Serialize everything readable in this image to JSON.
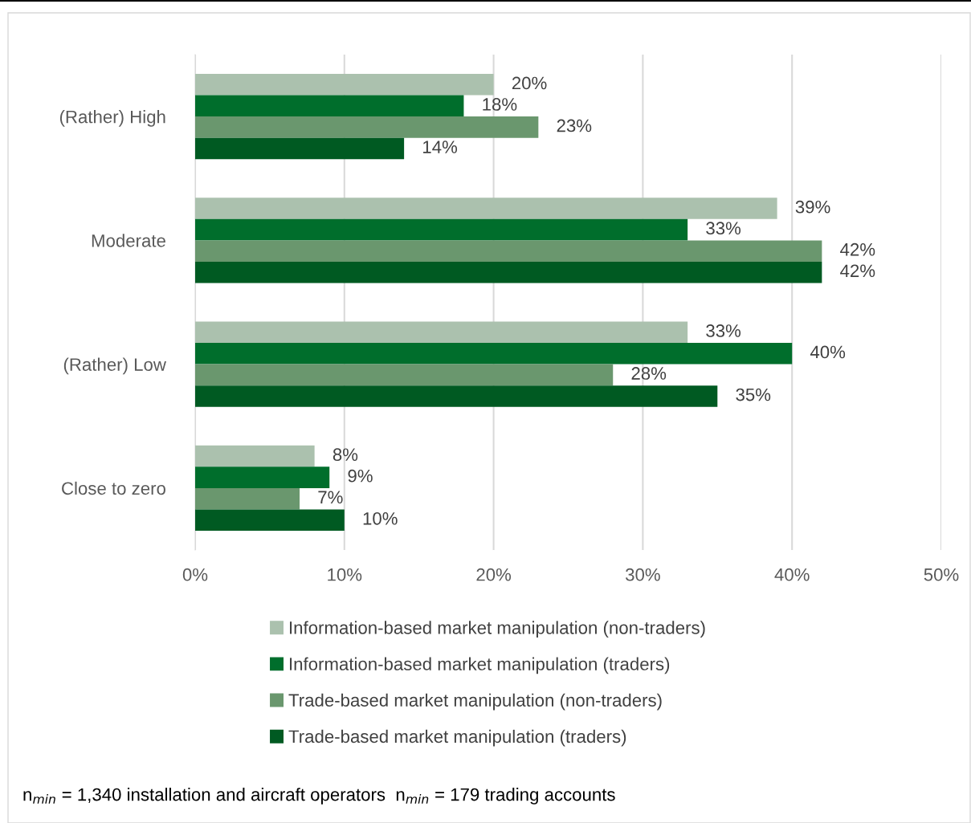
{
  "chart_data": {
    "type": "bar",
    "orientation": "horizontal",
    "categories": [
      "(Rather) High",
      "Moderate",
      "(Rather) Low",
      "Close to zero"
    ],
    "series": [
      {
        "name": "Information-based market manipulation (non-traders)",
        "color": "#abc1ae",
        "values": [
          20,
          39,
          33,
          8
        ],
        "value_labels": [
          "20%",
          "39%",
          "33%",
          "8%"
        ]
      },
      {
        "name": "Information-based market manipulation (traders)",
        "color": "#006e2c",
        "values": [
          18,
          33,
          40,
          9
        ],
        "value_labels": [
          "18%",
          "33%",
          "40%",
          "9%"
        ]
      },
      {
        "name": "Trade-based market manipulation (non-traders)",
        "color": "#6a976e",
        "values": [
          23,
          42,
          28,
          7
        ],
        "value_labels": [
          "23%",
          "42%",
          "28%",
          "7%"
        ]
      },
      {
        "name": "Trade-based market manipulation (traders)",
        "color": "#005a22",
        "values": [
          14,
          42,
          35,
          10
        ],
        "value_labels": [
          "14%",
          "42%",
          "35%",
          "10%"
        ]
      }
    ],
    "xlim": [
      0,
      50
    ],
    "xticks": [
      {
        "value": 0,
        "label": "0%"
      },
      {
        "value": 10,
        "label": "10%"
      },
      {
        "value": 20,
        "label": "20%"
      },
      {
        "value": 30,
        "label": "30%"
      },
      {
        "value": 40,
        "label": "40%"
      },
      {
        "value": 50,
        "label": "50%"
      }
    ],
    "grid": "x",
    "legend": "bottom",
    "annotations": [
      "n$_{min}$ = 1,340 installation and aircraft operators  n$_{min}$ = 179 trading accounts"
    ]
  }
}
